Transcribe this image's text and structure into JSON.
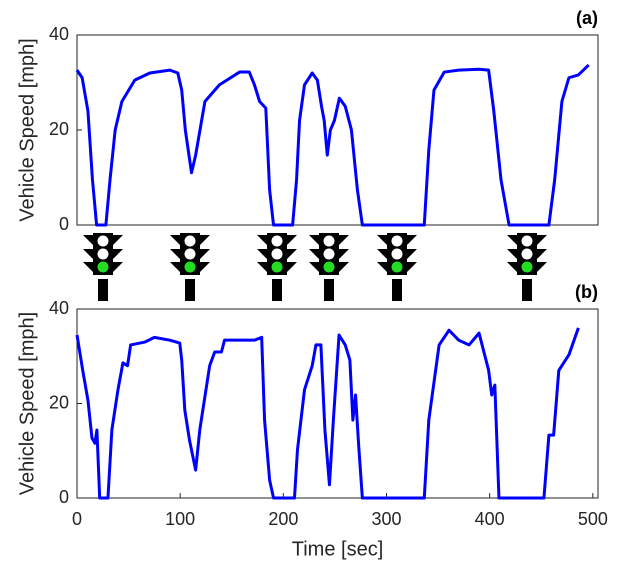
{
  "chart_data": [
    {
      "type": "line",
      "annotation": "(a)",
      "ylabel": "Vehicle Speed [mph]",
      "xlim": [
        0,
        505
      ],
      "ylim": [
        0,
        40
      ],
      "yticks": [
        0,
        20,
        40
      ],
      "series": [
        {
          "color": "#0000ff",
          "x": [
            0,
            5,
            10.6,
            15,
            19,
            28,
            32,
            37,
            43.5,
            56,
            70.6,
            90,
            97.7,
            101.5,
            105,
            111,
            115,
            124,
            138,
            157.6,
            167,
            172,
            177,
            183,
            186.7,
            190.5,
            209,
            212.8,
            215.7,
            220.5,
            228,
            233,
            237,
            239.6,
            242.6,
            245.6,
            249.5,
            254.3,
            260,
            266,
            271.8,
            276.6,
            336.6,
            341,
            346,
            356,
            370,
            389.7,
            399,
            404,
            411,
            418.8,
            457.4,
            463,
            470,
            476.8,
            486,
            496
          ],
          "values": [
            32.6,
            31,
            24,
            9.5,
            0,
            0,
            9.5,
            20,
            26,
            30.5,
            32,
            32.6,
            32,
            28.4,
            20,
            11,
            14.7,
            26,
            29.5,
            32.2,
            32.2,
            29.5,
            26,
            24.6,
            7.4,
            0,
            0,
            9.5,
            22,
            29.5,
            32,
            30.5,
            25,
            22,
            14.7,
            20,
            22,
            26.7,
            25,
            20,
            7.4,
            0,
            0,
            15.8,
            28.4,
            32.2,
            32.6,
            32.8,
            32.6,
            24,
            9.5,
            0,
            0,
            9.5,
            26,
            31,
            31.6,
            33.7
          ]
        }
      ]
    },
    {
      "type": "line",
      "annotation": "(b)",
      "ylabel": "Vehicle Speed [mph]",
      "xlabel": "Time [sec]",
      "xlim": [
        0,
        505
      ],
      "ylim": [
        0,
        40
      ],
      "yticks": [
        0,
        20,
        40
      ],
      "xticks": [
        0,
        100,
        200,
        300,
        400,
        500
      ],
      "series": [
        {
          "color": "#0000ff",
          "x": [
            0,
            5.8,
            10.6,
            14.5,
            17.4,
            19.3,
            22,
            30,
            33.8,
            39.7,
            44.5,
            49,
            52,
            65.8,
            75,
            90,
            99.6,
            101.5,
            104.5,
            109,
            115,
            119,
            128.6,
            133.5,
            140,
            143,
            157.6,
            172,
            179,
            181.8,
            186.7,
            190.5,
            210.8,
            213.7,
            220.5,
            228,
            231.6,
            236.4,
            240.3,
            244.7,
            248.5,
            254,
            260,
            264.5,
            267.4,
            270,
            273,
            276.6,
            336.6,
            341,
            351,
            360.6,
            370,
            380,
            389.7,
            399,
            402,
            405,
            409,
            452.6,
            457.4,
            462,
            467,
            476.8,
            486
          ],
          "values": [
            34.5,
            26.7,
            20.7,
            12.7,
            11.6,
            14.4,
            0,
            0,
            14.4,
            22.9,
            28.6,
            28,
            32.4,
            33,
            34,
            33.4,
            32.8,
            29.2,
            18.6,
            12.3,
            5.9,
            14.4,
            28,
            30.9,
            30.9,
            33.4,
            33.4,
            33.4,
            34,
            16.5,
            3.8,
            0,
            0,
            10.2,
            22.9,
            28,
            32.4,
            32.4,
            14.4,
            2.8,
            16.5,
            34.5,
            32.4,
            29.2,
            16.5,
            21.8,
            11.2,
            0,
            0,
            16.5,
            32.4,
            35.5,
            33.4,
            32.4,
            34.9,
            27,
            21.8,
            23.9,
            0,
            0,
            13.3,
            13.3,
            27,
            30.3,
            36
          ]
        }
      ]
    }
  ]
}
